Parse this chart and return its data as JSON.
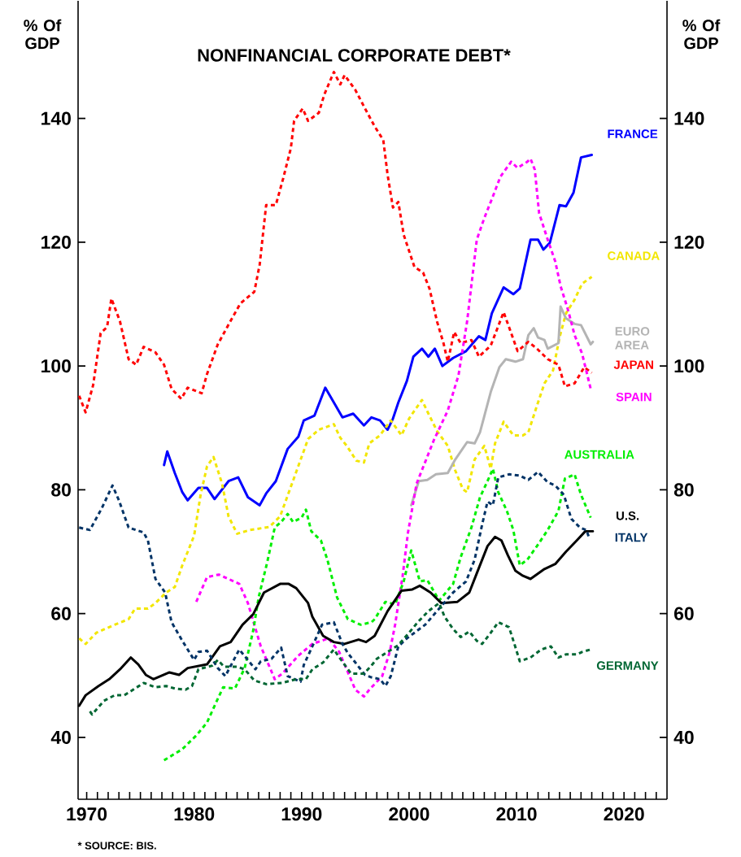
{
  "chart_data": {
    "type": "line",
    "title": "NONFINANCIAL CORPORATE DEBT*",
    "ylabel": "% Of GDP",
    "y2label": "% Of GDP",
    "annotations": [
      "* SOURCE: BIS."
    ],
    "xlim": [
      1969.2,
      2024
    ],
    "ylim": [
      30,
      159
    ],
    "y2lim": [
      30,
      159
    ],
    "yticks": [
      40,
      60,
      80,
      100,
      120,
      140
    ],
    "y2ticks": [
      40,
      60,
      80,
      100,
      120,
      140
    ],
    "xticks": [
      1970,
      {
        "value": 1971,
        "label": null
      },
      {
        "value": 1972,
        "label": null
      },
      {
        "value": 1973,
        "label": null
      },
      {
        "value": 1974,
        "label": null
      },
      {
        "value": 1975,
        "label": null
      },
      {
        "value": 1976,
        "label": null
      },
      {
        "value": 1977,
        "label": null
      },
      {
        "value": 1978,
        "label": null
      },
      {
        "value": 1979,
        "label": null
      },
      1980,
      {
        "value": 1981,
        "label": null
      },
      {
        "value": 1982,
        "label": null
      },
      {
        "value": 1983,
        "label": null
      },
      {
        "value": 1984,
        "label": null
      },
      {
        "value": 1985,
        "label": null
      },
      {
        "value": 1986,
        "label": null
      },
      {
        "value": 1987,
        "label": null
      },
      {
        "value": 1988,
        "label": null
      },
      {
        "value": 1989,
        "label": null
      },
      1990,
      {
        "value": 1991,
        "label": null
      },
      {
        "value": 1992,
        "label": null
      },
      {
        "value": 1993,
        "label": null
      },
      {
        "value": 1994,
        "label": null
      },
      {
        "value": 1995,
        "label": null
      },
      {
        "value": 1996,
        "label": null
      },
      {
        "value": 1997,
        "label": null
      },
      {
        "value": 1998,
        "label": null
      },
      {
        "value": 1999,
        "label": null
      },
      2000,
      {
        "value": 2001,
        "label": null
      },
      {
        "value": 2002,
        "label": null
      },
      {
        "value": 2003,
        "label": null
      },
      {
        "value": 2004,
        "label": null
      },
      {
        "value": 2005,
        "label": null
      },
      {
        "value": 2006,
        "label": null
      },
      {
        "value": 2007,
        "label": null
      },
      {
        "value": 2008,
        "label": null
      },
      {
        "value": 2009,
        "label": null
      },
      2010,
      {
        "value": 2011,
        "label": null
      },
      {
        "value": 2012,
        "label": null
      },
      {
        "value": 2013,
        "label": null
      },
      {
        "value": 2014,
        "label": null
      },
      {
        "value": 2015,
        "label": null
      },
      {
        "value": 2016,
        "label": null
      },
      {
        "value": 2017,
        "label": null
      },
      {
        "value": 2018,
        "label": null
      },
      {
        "value": 2019,
        "label": null
      },
      2020,
      {
        "value": 2021,
        "label": null
      },
      {
        "value": 2022,
        "label": null
      },
      {
        "value": 2023,
        "label": null
      }
    ],
    "series": [
      {
        "name": "FRANCE",
        "color": "#0000ff",
        "line_style": "solid",
        "x": [
          1977.2,
          1977.5,
          1978.2,
          1978.9,
          1979.4,
          1980.4,
          1981.2,
          1981.9,
          1983.2,
          1984.1,
          1985,
          1986.1,
          1986.7,
          1987.6,
          1988.7,
          1989.7,
          1990.2,
          1991.2,
          1992.2,
          1993,
          1993.8,
          1994.8,
          1995.8,
          1996.5,
          1997.3,
          1998,
          1998.5,
          1999,
          1999.8,
          2000.4,
          2001.2,
          2001.8,
          2002.4,
          2003.1,
          2004.1,
          2005.3,
          2006.5,
          2007.1,
          2007.7,
          2008.8,
          2009.7,
          2010.3,
          2011.3,
          2012,
          2012.5,
          2013.1,
          2014,
          2014.6,
          2015.3,
          2016,
          2017
        ],
        "values": [
          84,
          86.2,
          82.7,
          79.6,
          78.3,
          80.3,
          80.3,
          78.5,
          81.4,
          82,
          78.8,
          77.5,
          79.4,
          81.4,
          86.6,
          88.6,
          91.2,
          92,
          96.5,
          94.1,
          91.7,
          92.3,
          90.4,
          91.7,
          91.2,
          89.7,
          91.5,
          94.1,
          97.6,
          101.5,
          102.8,
          101.5,
          102.8,
          100,
          101.3,
          102.4,
          104.8,
          104.2,
          108.5,
          112.7,
          111.6,
          112.5,
          120.4,
          120.4,
          118.8,
          119.9,
          126,
          125.8,
          128,
          133.7,
          134.1
        ]
      },
      {
        "name": "CANADA",
        "color": "#f2e600",
        "line_style": "dashed",
        "x": [
          1969.3,
          1969.9,
          1970.9,
          1972.6,
          1973.9,
          1974.5,
          1975.7,
          1976.4,
          1977.4,
          1978.2,
          1978.9,
          1980,
          1980.6,
          1981.2,
          1981.8,
          1982.6,
          1983.2,
          1984,
          1985.2,
          1987,
          1988,
          1989,
          1990,
          1990.6,
          1991.6,
          1993,
          1993.6,
          1994.2,
          1995.1,
          1995.8,
          1996.3,
          1997.3,
          1998.3,
          1999.3,
          2000,
          2000.5,
          2001.2,
          2001.8,
          2002.6,
          2003.6,
          2004.3,
          2005,
          2005.4,
          2006.1,
          2007,
          2007.6,
          2008,
          2008.8,
          2009.7,
          2010.6,
          2011.1,
          2011.9,
          2012.6,
          2013.4,
          2014,
          2014.6,
          2015.4,
          2016.1,
          2017
        ],
        "values": [
          56,
          55.1,
          56.9,
          58.2,
          59.1,
          60.8,
          60.8,
          61.7,
          63.4,
          64.3,
          67.8,
          72.6,
          79.2,
          83.8,
          85.3,
          81,
          75.7,
          72.9,
          73.5,
          74,
          75.7,
          80.5,
          85.3,
          88.2,
          89.7,
          90.6,
          88.4,
          87.1,
          84.7,
          84.4,
          87.5,
          88.8,
          91.2,
          88.8,
          91.5,
          92.8,
          94.5,
          92.3,
          89.5,
          87.1,
          83.1,
          80.1,
          79.6,
          84.9,
          87.1,
          83.4,
          87.5,
          91,
          88.8,
          88.8,
          89.3,
          93.6,
          97.2,
          99.3,
          104.6,
          108.5,
          110.7,
          113.3,
          114.4
        ]
      },
      {
        "name": "EURO AREA",
        "color": "#b4b4b4",
        "line_style": "solid",
        "x": [
          2000.2,
          2000.9,
          2001.7,
          2002.5,
          2003.6,
          2004.3,
          2005.4,
          2006.1,
          2006.6,
          2007,
          2007.6,
          2008.4,
          2009,
          2009.9,
          2010.6,
          2011.1,
          2011.6,
          2012,
          2012.6,
          2012.9,
          2013.9,
          2014.1,
          2014.6,
          2015.4,
          2016,
          2016.9,
          2017.1
        ],
        "values": [
          77.5,
          81.4,
          81.6,
          82.5,
          82.7,
          84.9,
          87.7,
          87.5,
          89.3,
          91.9,
          95.8,
          99.8,
          101.1,
          100.7,
          101.1,
          105,
          106.1,
          104.6,
          104.2,
          102.8,
          103.7,
          109.6,
          107.7,
          106.8,
          106.6,
          103.5,
          103.9
        ]
      },
      {
        "name": "JAPAN",
        "color": "#ff0000",
        "line_style": "dashed",
        "x": [
          1969.3,
          1969.9,
          1970.6,
          1971.3,
          1971.9,
          1972.3,
          1973.1,
          1973.9,
          1974.6,
          1975.3,
          1976.4,
          1977.2,
          1977.9,
          1978.8,
          1979.4,
          1980.7,
          1981.2,
          1982.2,
          1983.3,
          1984.3,
          1985.6,
          1986.1,
          1986.7,
          1987.6,
          1988.3,
          1989,
          1989.3,
          1990.1,
          1990.6,
          1991.6,
          1992.1,
          1993,
          1993.6,
          1994,
          1995,
          1995.9,
          1996.8,
          1997.6,
          1998,
          1998.5,
          1999,
          1999.5,
          2000.5,
          2001.3,
          2001.9,
          2002.6,
          2003.2,
          2003.6,
          2004.2,
          2004.8,
          2005.8,
          2006.5,
          2007.6,
          2008.8,
          2010.1,
          2011.1,
          2011.9,
          2012.9,
          2013.9,
          2014.5,
          2015.4,
          2016.3,
          2017
        ],
        "values": [
          95.2,
          92.5,
          96.9,
          105.3,
          106.3,
          110.9,
          107.2,
          101.1,
          100.2,
          103.1,
          102.2,
          100.2,
          96.3,
          94.7,
          96.5,
          95.6,
          98.7,
          103.5,
          107,
          110.1,
          112,
          116.4,
          126,
          126,
          130.4,
          135.2,
          139.6,
          141.6,
          139.6,
          140.9,
          143.8,
          147.5,
          145.5,
          147,
          144.6,
          141.6,
          138.7,
          136.5,
          130.9,
          125.6,
          126.5,
          121.2,
          116,
          115.1,
          112.5,
          107.2,
          103.7,
          100.7,
          105.5,
          103.7,
          104.2,
          101.5,
          103.3,
          108.7,
          102.4,
          103.9,
          102.8,
          101.1,
          100.2,
          96.7,
          97.2,
          99.8,
          98.9
        ]
      },
      {
        "name": "SPAIN",
        "color": "#ff00ff",
        "line_style": "dashed",
        "x": [
          1980.2,
          1981.2,
          1982.3,
          1984.2,
          1985,
          1986.2,
          1987.5,
          1988.2,
          1989.7,
          1991,
          1992.5,
          1993.5,
          1995,
          1995.8,
          1996.3,
          1997.5,
          1998.2,
          1998.7,
          1999.4,
          1999.9,
          2000.7,
          2002.3,
          2003.6,
          2004.6,
          2005.4,
          2006.3,
          2007,
          2007.8,
          2008.5,
          2009.5,
          2010.1,
          2011,
          2011.3,
          2011.7,
          2012.1,
          2012.9,
          2013.6,
          2014.1,
          2014.8,
          2015.4,
          2016.1,
          2016.9
        ],
        "values": [
          61.9,
          65.9,
          66.3,
          64.8,
          61.7,
          54.7,
          49.4,
          50.3,
          53.2,
          55.1,
          56,
          53.8,
          47.7,
          46.6,
          47.7,
          49.9,
          53.8,
          58.2,
          66.1,
          73.1,
          81,
          88,
          92.8,
          98.5,
          107.2,
          120.4,
          123.9,
          127.4,
          130.6,
          133,
          132,
          133,
          133.5,
          131.7,
          124.7,
          120.4,
          116.9,
          112.9,
          109,
          105,
          102,
          96.3
        ]
      },
      {
        "name": "AUSTRALIA",
        "color": "#00ee00",
        "line_style": "dashed",
        "x": [
          1977.2,
          1978.9,
          1980.2,
          1981.2,
          1981.9,
          1982.7,
          1983.8,
          1984.7,
          1985.5,
          1986,
          1986.8,
          1987.5,
          1988.1,
          1988.7,
          1989.2,
          1990,
          1990.4,
          1990.9,
          1991.8,
          1992.4,
          1993.3,
          1994.3,
          1995.5,
          1996.5,
          1996.8,
          1997.8,
          1998.7,
          1999.5,
          2000.2,
          2001,
          2001.7,
          2002.8,
          2004.1,
          2004.8,
          2005.8,
          2006.6,
          2007.3,
          2007.8,
          2008.3,
          2009.1,
          2009.7,
          2010.3,
          2011,
          2011.9,
          2012.9,
          2013.9,
          2014.5,
          2015.4,
          2016,
          2016.9
        ],
        "values": [
          36.3,
          38.1,
          40.3,
          42.4,
          45.1,
          48.1,
          47.9,
          51.2,
          57.3,
          62.6,
          68.3,
          73.9,
          74.8,
          76.1,
          74.8,
          75.5,
          76.8,
          73.3,
          71.8,
          68.7,
          62.6,
          59.1,
          58.2,
          58.6,
          59.1,
          61.9,
          61.5,
          65.2,
          70.2,
          65.2,
          65.4,
          62.1,
          64.8,
          69.1,
          73.9,
          78.8,
          81.4,
          83.4,
          79.6,
          76.6,
          73.5,
          67.8,
          68.7,
          70.9,
          73.5,
          76.6,
          81.8,
          82.5,
          79.2,
          75.5
        ]
      },
      {
        "name": "U.S.",
        "color": "#000000",
        "line_style": "solid",
        "x": [
          1969.3,
          1969.9,
          1971.1,
          1972.1,
          1973.1,
          1974.1,
          1974.8,
          1975.5,
          1976.2,
          1977.7,
          1978.6,
          1979.4,
          1981.2,
          1982.4,
          1983.4,
          1984.5,
          1985.5,
          1986.5,
          1988,
          1988.8,
          1989.5,
          1990.6,
          1991,
          1992,
          1993,
          1994,
          1995.3,
          1996,
          1996.8,
          1998,
          1999.3,
          2000.3,
          2001,
          2002,
          2003,
          2004.5,
          2005.6,
          2006.3,
          2007.3,
          2008,
          2008.6,
          2009.2,
          2009.9,
          2010.6,
          2011.3,
          2012.6,
          2013.6,
          2014.6,
          2015.6,
          2016.4,
          2017.1
        ],
        "values": [
          45.1,
          46.8,
          48.3,
          49.4,
          51,
          52.9,
          51.8,
          50.1,
          49.4,
          50.5,
          50.1,
          51.2,
          51.8,
          54.7,
          55.4,
          58.2,
          59.9,
          63.4,
          64.8,
          64.8,
          64.1,
          61.7,
          59.5,
          56.4,
          55.4,
          55.1,
          55.8,
          55.4,
          56.4,
          60.4,
          63.7,
          63.9,
          64.5,
          63.4,
          61.7,
          61.9,
          63.4,
          66.5,
          70.9,
          72.4,
          71.8,
          69.4,
          66.9,
          66.1,
          65.6,
          67.2,
          68,
          70,
          71.8,
          73.3,
          73.3
        ]
      },
      {
        "name": "ITALY",
        "color": "#003366",
        "line_style": "dashed",
        "x": [
          1969.3,
          1970.3,
          1971.4,
          1972.4,
          1973,
          1973.9,
          1975.3,
          1975.7,
          1976.4,
          1977.3,
          1977.9,
          1978.9,
          1980,
          1980.4,
          1981.2,
          1982.2,
          1982.9,
          1984.2,
          1985,
          1985.7,
          1986.2,
          1987.2,
          1988.1,
          1988.7,
          1989.9,
          1990.2,
          1991,
          1991.9,
          1993,
          1993.8,
          1994.3,
          1995,
          1995.9,
          1996.5,
          1997.3,
          1997.8,
          1998.3,
          1999,
          1999.8,
          2000.5,
          2001.5,
          2002.8,
          2004.1,
          2005.3,
          2006.1,
          2006.8,
          2007.3,
          2007.8,
          2008.3,
          2009.3,
          2010.3,
          2011.1,
          2012,
          2012.9,
          2013.6,
          2014.4,
          2015.1,
          2015.9,
          2016.5,
          2016.8
        ],
        "values": [
          73.9,
          73.5,
          77,
          80.7,
          78.3,
          73.9,
          73.1,
          71.8,
          65.6,
          63.4,
          58.6,
          55.6,
          52.5,
          53.8,
          54,
          51.2,
          49.9,
          54.2,
          52.5,
          51,
          52.3,
          52.7,
          54.5,
          49.9,
          49,
          51.7,
          54.7,
          58.2,
          58.6,
          55.1,
          53.6,
          52.1,
          50.1,
          49.7,
          49.4,
          48.3,
          49.9,
          54.7,
          56,
          56.9,
          58.2,
          60.8,
          63.4,
          65.2,
          68.7,
          74.4,
          78.1,
          77.5,
          82,
          82.5,
          82.3,
          81.6,
          82.9,
          81.2,
          80.7,
          79.2,
          75.3,
          73.9,
          73.5,
          72
        ]
      },
      {
        "name": "GERMANY",
        "color": "#006633",
        "line_style": "dashed",
        "x": [
          1970.3,
          1970.5,
          1971.6,
          1972.6,
          1973.5,
          1974.5,
          1975.3,
          1976.4,
          1977.4,
          1978.2,
          1979.2,
          1979.8,
          1980.4,
          1981.7,
          1982.2,
          1982.8,
          1984,
          1984.7,
          1985.6,
          1986.7,
          1988.2,
          1989.5,
          1990.4,
          1991,
          1992,
          1993,
          1993.6,
          1994.6,
          1995.8,
          1996.5,
          1997,
          1998,
          1999,
          2000,
          2000.8,
          2001.8,
          2002.8,
          2003.3,
          2004.1,
          2004.8,
          2005.6,
          2006.3,
          2006.8,
          2007.6,
          2008.3,
          2009.3,
          2009.8,
          2010.3,
          2011.3,
          2012.3,
          2013.2,
          2013.9,
          2014.6,
          2015.6,
          2016.1,
          2016.9
        ],
        "values": [
          44.2,
          43.7,
          45.9,
          46.8,
          46.8,
          47.9,
          48.8,
          48.1,
          48.3,
          47.9,
          47.7,
          48.3,
          51,
          51.6,
          52.5,
          51.4,
          51.4,
          51,
          49.2,
          48.6,
          48.8,
          49.4,
          49.4,
          51,
          52.1,
          54.2,
          52.7,
          50.3,
          50.3,
          51.6,
          52.7,
          53.8,
          54.9,
          56.9,
          58.6,
          60.4,
          61.7,
          59.5,
          57.5,
          56.2,
          57.1,
          55.6,
          55.1,
          56.9,
          58.6,
          57.8,
          55.1,
          52.3,
          52.9,
          54.2,
          54.7,
          52.9,
          53.4,
          53.4,
          53.8,
          54.2
        ]
      }
    ]
  }
}
